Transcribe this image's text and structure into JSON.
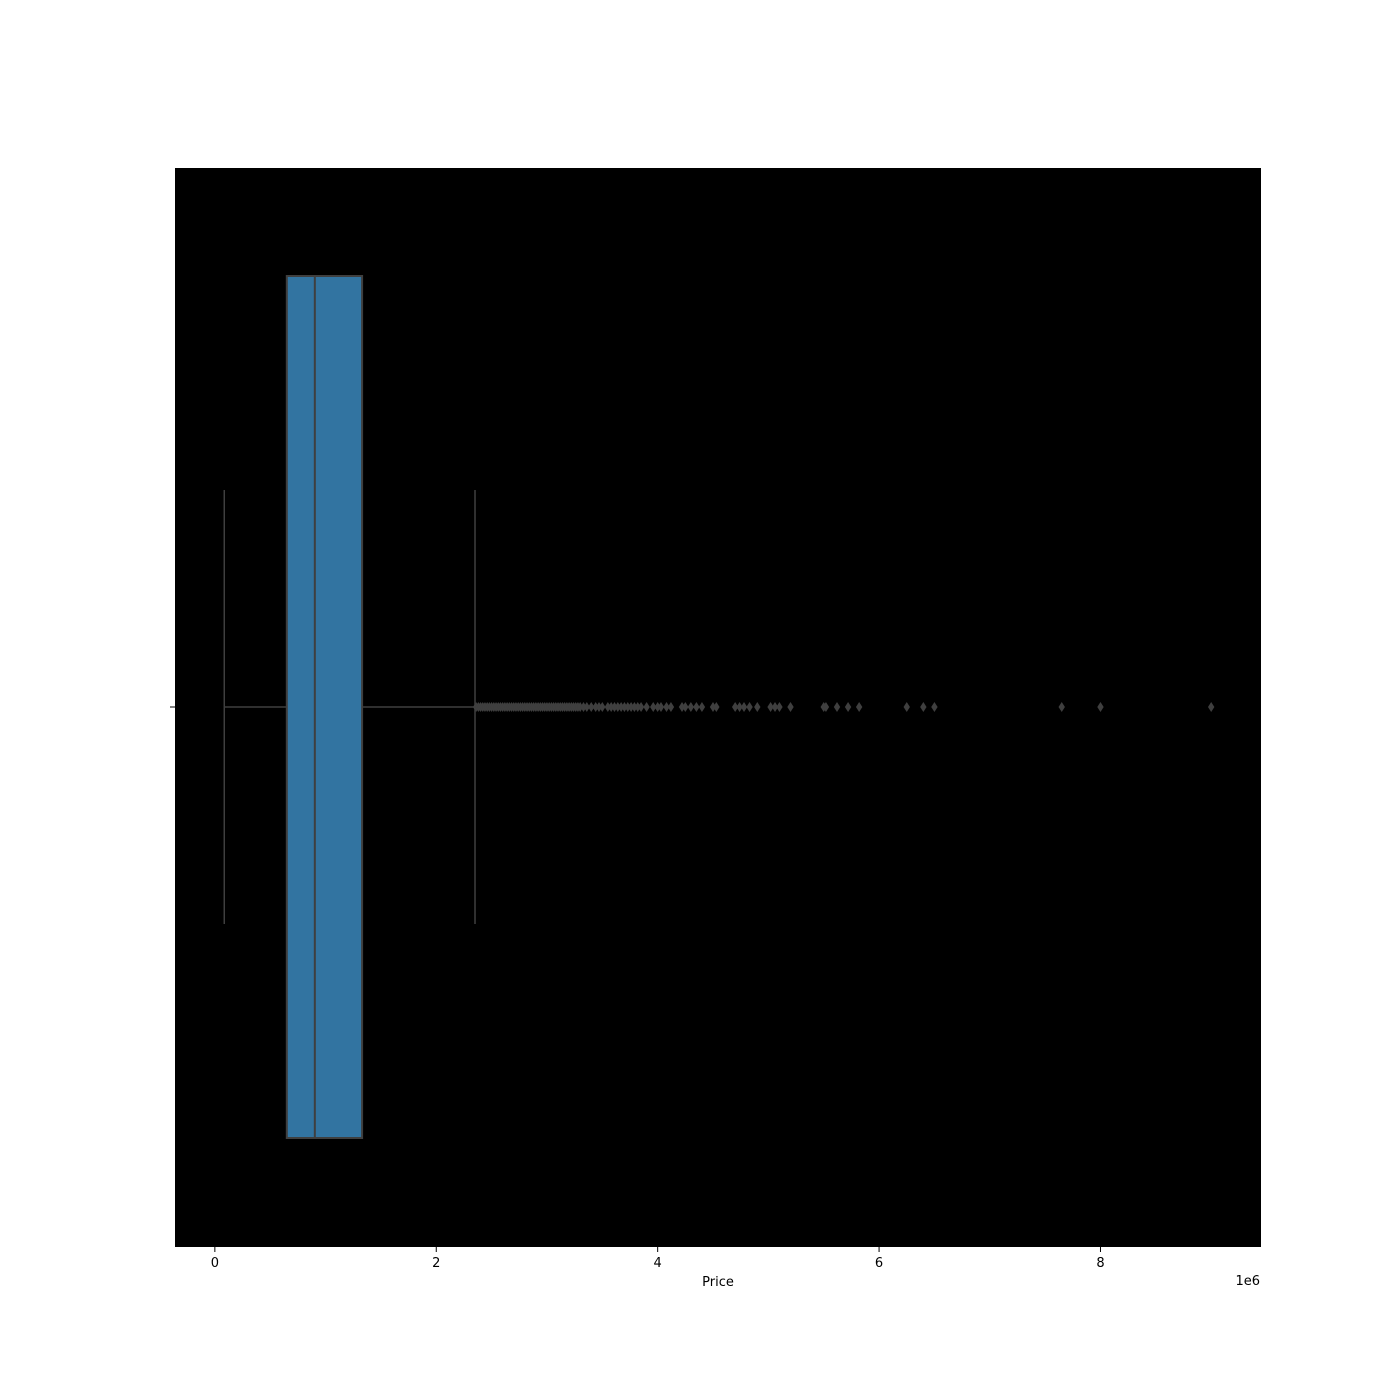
{
  "chart_data": {
    "type": "box",
    "orientation": "horizontal",
    "title": "",
    "xlabel": "Price",
    "ylabel": "",
    "x_offset_label": "1e6",
    "x_scale_factor": 1000000,
    "xlim": [
      -360000,
      9450000
    ],
    "x_ticks": [
      0,
      2000000,
      4000000,
      6000000,
      8000000
    ],
    "x_tick_labels": [
      "0",
      "2",
      "4",
      "6",
      "8"
    ],
    "grid": false,
    "legend": "none",
    "colors": {
      "plot_background": "#000000",
      "figure_background": "#ffffff",
      "box_fill": "#3274a1",
      "lines": "#3f3f3f",
      "outliers": "#3f3f3f"
    },
    "box": {
      "whisker_low": 85000,
      "q1": 650000,
      "median": 903000,
      "q3": 1330000,
      "whisker_high": 2350000
    },
    "outliers": [
      2360000,
      2380000,
      2400000,
      2420000,
      2440000,
      2460000,
      2480000,
      2500000,
      2520000,
      2540000,
      2560000,
      2580000,
      2600000,
      2620000,
      2640000,
      2660000,
      2680000,
      2700000,
      2720000,
      2740000,
      2760000,
      2780000,
      2800000,
      2820000,
      2840000,
      2860000,
      2880000,
      2900000,
      2920000,
      2940000,
      2960000,
      2980000,
      3000000,
      3020000,
      3040000,
      3060000,
      3080000,
      3100000,
      3120000,
      3140000,
      3160000,
      3180000,
      3200000,
      3220000,
      3240000,
      3260000,
      3280000,
      3300000,
      3330000,
      3360000,
      3400000,
      3440000,
      3470000,
      3500000,
      3550000,
      3580000,
      3610000,
      3640000,
      3670000,
      3700000,
      3730000,
      3760000,
      3790000,
      3820000,
      3850000,
      3900000,
      3960000,
      4000000,
      4030000,
      4080000,
      4120000,
      4220000,
      4250000,
      4300000,
      4350000,
      4400000,
      4500000,
      4530000,
      4700000,
      4740000,
      4780000,
      4830000,
      4900000,
      5020000,
      5060000,
      5100000,
      5200000,
      5500000,
      5520000,
      5620000,
      5720000,
      5820000,
      6250000,
      6400000,
      6500000,
      7650000,
      8000000,
      9000000
    ]
  }
}
